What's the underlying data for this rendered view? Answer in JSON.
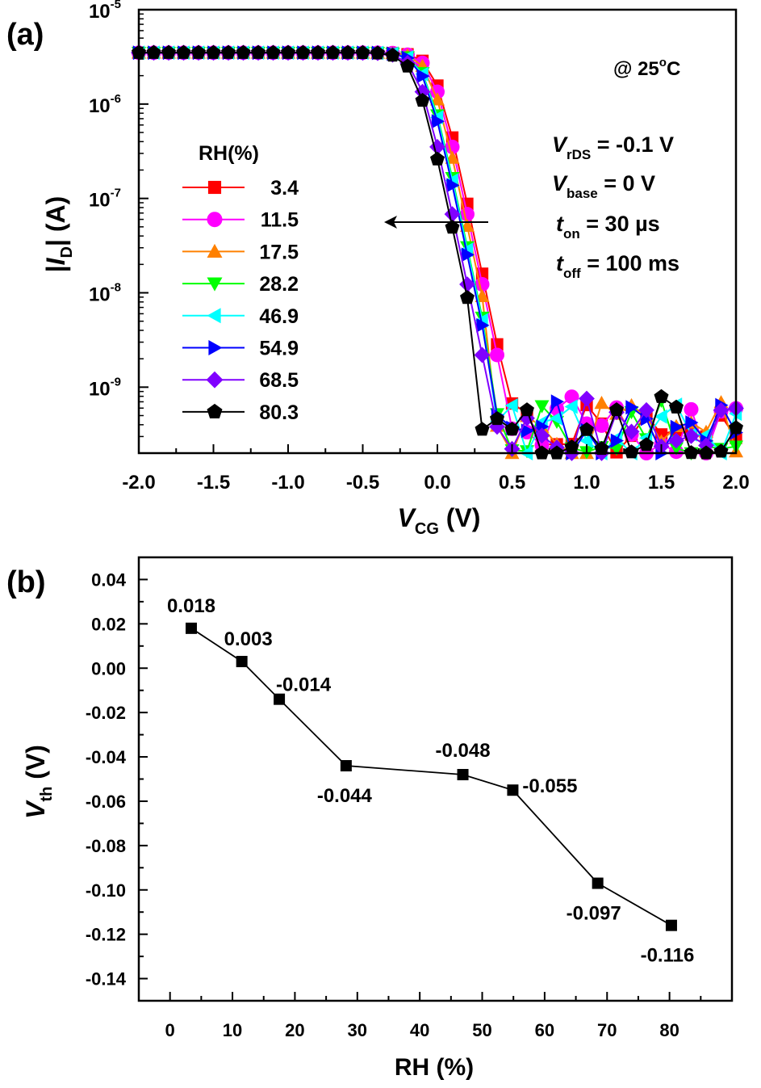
{
  "chart_data": [
    {
      "panel_label": "(a)",
      "type": "scatter",
      "y_scale": "log",
      "xlim": [
        -2.0,
        2.0
      ],
      "ylim": [
        2e-10,
        1e-05
      ],
      "x_ticks": [
        "-2.0",
        "-1.5",
        "-1.0",
        "-0.5",
        "0.0",
        "0.5",
        "1.0",
        "1.5",
        "2.0"
      ],
      "y_tick_base": [
        "10",
        "10",
        "10",
        "10",
        "10"
      ],
      "y_tick_exp": [
        "-9",
        "-8",
        "-7",
        "-6",
        "-5"
      ],
      "xlabel": {
        "v": "V",
        "sub": "CG",
        "unit": " (V)"
      },
      "ylabel": {
        "a": "|",
        "i": "I",
        "sub": "D",
        "b": "| (A)"
      },
      "legend_title": "RH(%)",
      "legend_position": "left",
      "temp_text": "@ 25",
      "temp_deg": "o",
      "temp_unit": "C",
      "conditions": [
        {
          "v": "V",
          "sub": "rDS",
          "rest": " = -0.1 V"
        },
        {
          "v": "V",
          "sub": "base",
          "rest": " = 0 V"
        },
        {
          "v": "t",
          "sub": "on",
          "rest": " = 30 µs"
        },
        {
          "v": "t",
          "sub": "off",
          "rest": " = 100 ms"
        }
      ],
      "arrow": "left",
      "grid": false,
      "series": [
        {
          "name": "3.4",
          "marker": "square",
          "color": "#ff0000",
          "shift": 0.018
        },
        {
          "name": "11.5",
          "marker": "circle",
          "color": "#ff00ff",
          "shift": 0.003
        },
        {
          "name": "17.5",
          "marker": "triangle-up",
          "color": "#ff8000",
          "shift": -0.014
        },
        {
          "name": "28.2",
          "marker": "triangle-down",
          "color": "#00ff00",
          "shift": -0.044
        },
        {
          "name": "46.9",
          "marker": "triangle-left",
          "color": "#00ffff",
          "shift": -0.048
        },
        {
          "name": "54.9",
          "marker": "triangle-right",
          "color": "#0000ff",
          "shift": -0.055
        },
        {
          "name": "68.5",
          "marker": "diamond",
          "color": "#8000ff",
          "shift": -0.097
        },
        {
          "name": "80.3",
          "marker": "pentagon",
          "color": "#000000",
          "shift": -0.116
        }
      ]
    },
    {
      "panel_label": "(b)",
      "type": "line",
      "xlim": [
        -5,
        90
      ],
      "ylim": [
        -0.15,
        0.05
      ],
      "x_ticks": [
        "0",
        "10",
        "20",
        "30",
        "40",
        "50",
        "60",
        "70",
        "80"
      ],
      "y_ticks": [
        "0.04",
        "0.02",
        "0.00",
        "-0.02",
        "-0.04",
        "-0.06",
        "-0.08",
        "-0.10",
        "-0.12",
        "-0.14"
      ],
      "xlabel": "RH (%)",
      "ylabel": {
        "v": "V",
        "sub": "th",
        "unit": " (V)"
      },
      "grid": false,
      "x": [
        3.4,
        11.5,
        17.5,
        28.2,
        46.9,
        54.9,
        68.5,
        80.3
      ],
      "y": [
        0.018,
        0.003,
        -0.014,
        -0.044,
        -0.048,
        -0.055,
        -0.097,
        -0.116
      ],
      "point_labels": [
        "0.018",
        "0.003",
        "-0.014",
        "-0.044",
        "-0.048",
        "-0.055",
        "-0.097",
        "-0.116"
      ]
    }
  ]
}
